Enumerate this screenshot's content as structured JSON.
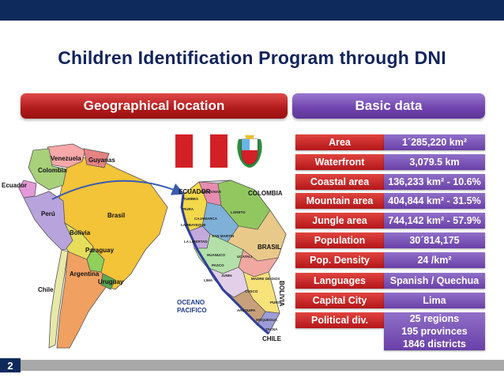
{
  "title": "Children Identification Program through DNI",
  "headers": {
    "geo": "Geographical location",
    "basic": "Basic data"
  },
  "rows": [
    {
      "label": "Area",
      "value": "1´285,220 km²"
    },
    {
      "label": "Waterfront",
      "value": "3,079.5 km"
    },
    {
      "label": "Coastal area",
      "value": "136,233 km² - 10.6%"
    },
    {
      "label": "Mountain area",
      "value": "404,844 km² - 31.5%"
    },
    {
      "label": "Jungle area",
      "value": "744,142 km² - 57.9%"
    },
    {
      "label": "Population",
      "value": "30´814,175"
    },
    {
      "label": "Pop. Density",
      "value": "24 /km²"
    },
    {
      "label": "Languages",
      "value": "Spanish / Quechua"
    },
    {
      "label": "Capital City",
      "value": "Lima"
    }
  ],
  "political": {
    "label": "Political div.",
    "lines": [
      "25 regions",
      "195 provinces",
      "1846 districts"
    ]
  },
  "sa_map": {
    "countries": [
      "Venezuela",
      "Guyanas",
      "Colombia",
      "Ecuador",
      "Brasil",
      "Perú",
      "Bolivia",
      "Paraguay",
      "Chile",
      "Argentina",
      "Uruguay"
    ]
  },
  "peru_map": {
    "neighbors": [
      "ECUADOR",
      "COLOMBIA",
      "BRASIL",
      "BOLIVIA",
      "CHILE"
    ],
    "ocean": [
      "OCEANO",
      "PACIFICO"
    ],
    "regions": [
      "TUMBES",
      "PIURA",
      "LAMBAYEQUE",
      "AMAZONAS",
      "CAJAMARCA",
      "LORETO",
      "SAN MARTIN",
      "LA LIBERTAD",
      "HUANUCO",
      "UCAYALI",
      "PASCO",
      "JUNIN",
      "LIMA",
      "MADRE DE DIOS",
      "CUSCO",
      "PUNO",
      "AREQUIPA",
      "MOQUEGUA",
      "TACNA"
    ]
  },
  "page_number": "2",
  "colors": {
    "navy": "#0e2a5c",
    "red": "#c0201f",
    "purple": "#6e43ad",
    "gray": "#a8a8a8"
  }
}
